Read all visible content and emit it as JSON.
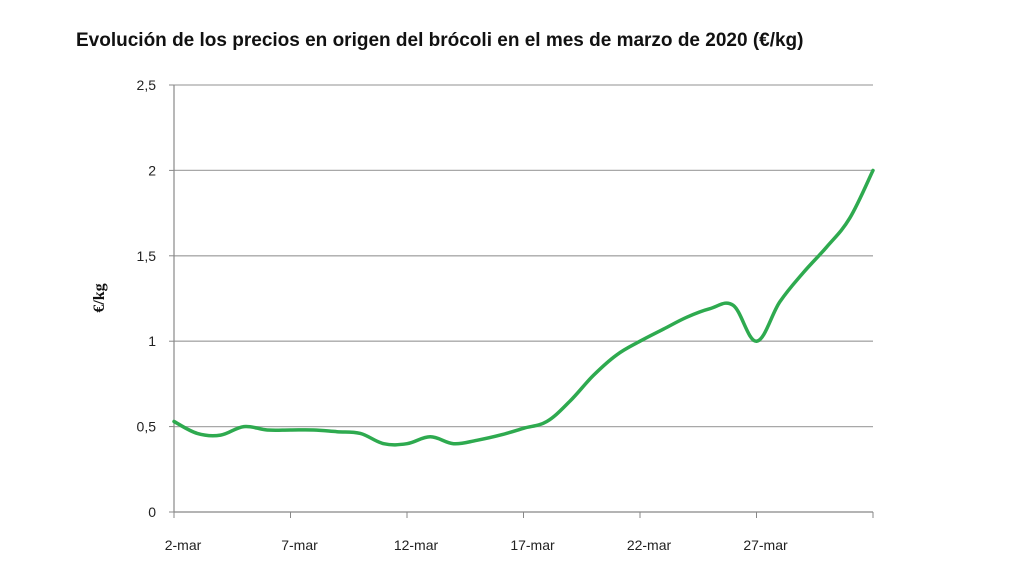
{
  "chart_data": {
    "type": "line",
    "title": "Evolución de los precios en origen del brócoli en el mes de marzo de 2020 (€/kg)",
    "xlabel": "",
    "ylabel": "€/kg",
    "x_tick_labels": [
      "2-mar",
      "7-mar",
      "12-mar",
      "17-mar",
      "22-mar",
      "27-mar"
    ],
    "y_tick_labels": [
      "0",
      "0,5",
      "1",
      "1,5",
      "2",
      "2,5"
    ],
    "ylim": [
      0,
      2.5
    ],
    "xlim": [
      "2-mar",
      "1-abr"
    ],
    "grid": "horizontal",
    "line_color": "#2eaa4f",
    "series": [
      {
        "points": [
          [
            "2-mar",
            0.53
          ],
          [
            "3-mar",
            0.46
          ],
          [
            "4-mar",
            0.45
          ],
          [
            "5-mar",
            0.5
          ],
          [
            "6-mar",
            0.48
          ],
          [
            "7-mar",
            0.48
          ],
          [
            "8-mar",
            0.48
          ],
          [
            "9-mar",
            0.47
          ],
          [
            "10-mar",
            0.46
          ],
          [
            "11-mar",
            0.4
          ],
          [
            "12-mar",
            0.4
          ],
          [
            "13-mar",
            0.44
          ],
          [
            "14-mar",
            0.4
          ],
          [
            "15-mar",
            0.42
          ],
          [
            "16-mar",
            0.45
          ],
          [
            "17-mar",
            0.49
          ],
          [
            "18-mar",
            0.53
          ],
          [
            "19-mar",
            0.65
          ],
          [
            "20-mar",
            0.8
          ],
          [
            "21-mar",
            0.92
          ],
          [
            "22-mar",
            1.0
          ],
          [
            "23-mar",
            1.07
          ],
          [
            "24-mar",
            1.14
          ],
          [
            "25-mar",
            1.19
          ],
          [
            "26-mar",
            1.21
          ],
          [
            "27-mar",
            1.0
          ],
          [
            "28-mar",
            1.23
          ],
          [
            "29-mar",
            1.4
          ],
          [
            "30-mar",
            1.55
          ],
          [
            "31-mar",
            1.72
          ],
          [
            "1-abr",
            2.0
          ]
        ]
      }
    ]
  }
}
